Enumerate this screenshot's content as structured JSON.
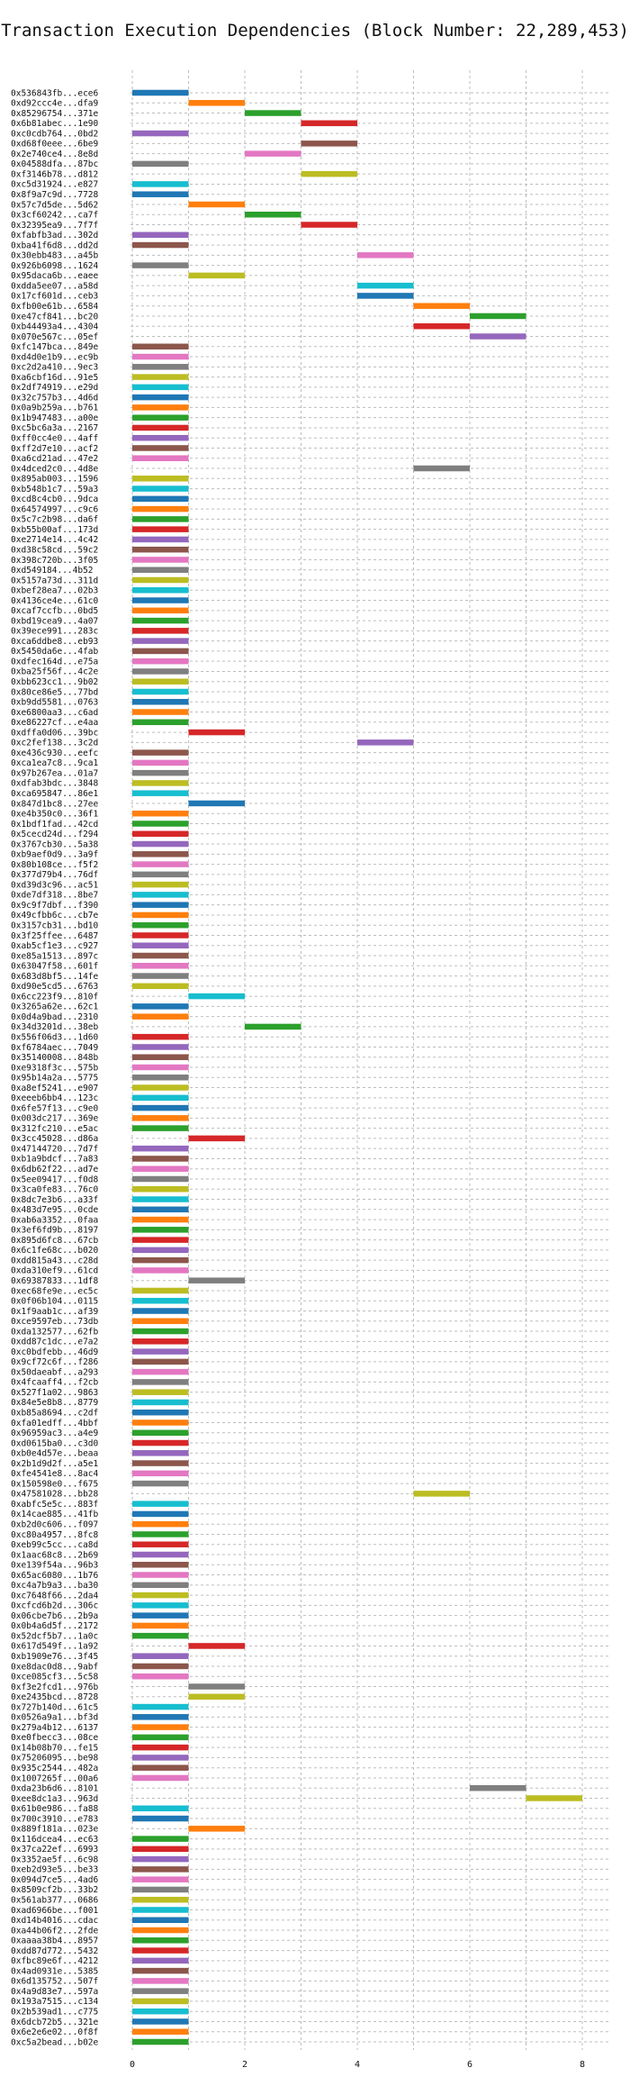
{
  "chart_data": {
    "type": "bar",
    "orientation": "horizontal-gantt",
    "title": "Transaction Execution Dependencies (Block Number: 22,289,453)",
    "xlabel": "",
    "ylabel": "",
    "xlim": [
      0,
      8.5
    ],
    "xticks": [
      0,
      2,
      4,
      6,
      8
    ],
    "grid": true,
    "colors": [
      "#1f77b4",
      "#ff7f0e",
      "#2ca02c",
      "#d62728",
      "#9467bd",
      "#8c564b",
      "#e377c2",
      "#7f7f7f",
      "#bcbd22",
      "#17becf"
    ],
    "transactions": [
      {
        "tx": "0x536843fb...ece6",
        "start": 0
      },
      {
        "tx": "0xd92ccc4e...dfa9",
        "start": 1
      },
      {
        "tx": "0x85296754...371e",
        "start": 2
      },
      {
        "tx": "0x6b81abec...1e90",
        "start": 3
      },
      {
        "tx": "0xc0cdb764...0bd2",
        "start": 0
      },
      {
        "tx": "0xd68f0eee...6be9",
        "start": 3
      },
      {
        "tx": "0x2e740ce4...8e8d",
        "start": 2
      },
      {
        "tx": "0x04588dfa...87bc",
        "start": 0
      },
      {
        "tx": "0xf3146b78...d812",
        "start": 3
      },
      {
        "tx": "0xc5d31924...e827",
        "start": 0
      },
      {
        "tx": "0x8f9a7c9d...7728",
        "start": 0
      },
      {
        "tx": "0x57c7d5de...5d62",
        "start": 1
      },
      {
        "tx": "0x3cf60242...ca7f",
        "start": 2
      },
      {
        "tx": "0x32395ea9...7f7f",
        "start": 3
      },
      {
        "tx": "0xfabfb3ad...302d",
        "start": 0
      },
      {
        "tx": "0xba41f6d8...dd2d",
        "start": 0
      },
      {
        "tx": "0x30ebb483...a45b",
        "start": 4
      },
      {
        "tx": "0x926b6098...1624",
        "start": 0
      },
      {
        "tx": "0x95daca6b...eaee",
        "start": 1
      },
      {
        "tx": "0xdda5ee07...a58d",
        "start": 4
      },
      {
        "tx": "0x17cf601d...ceb3",
        "start": 4
      },
      {
        "tx": "0xfb00e61b...6584",
        "start": 5
      },
      {
        "tx": "0xe47cf841...bc20",
        "start": 6
      },
      {
        "tx": "0xb44493a4...4304",
        "start": 5
      },
      {
        "tx": "0x070e567c...05ef",
        "start": 6
      },
      {
        "tx": "0xfc147bca...849e",
        "start": 0
      },
      {
        "tx": "0xd4d0e1b9...ec9b",
        "start": 0
      },
      {
        "tx": "0xc2d2a410...9ec3",
        "start": 0
      },
      {
        "tx": "0xa6cbf16d...91e5",
        "start": 0
      },
      {
        "tx": "0x2df74919...e29d",
        "start": 0
      },
      {
        "tx": "0x32c757b3...4d6d",
        "start": 0
      },
      {
        "tx": "0x0a9b259a...b761",
        "start": 0
      },
      {
        "tx": "0x1b947483...a00e",
        "start": 0
      },
      {
        "tx": "0xc5bc6a3a...2167",
        "start": 0
      },
      {
        "tx": "0xff0cc4e0...4aff",
        "start": 0
      },
      {
        "tx": "0xff2d7e10...acf2",
        "start": 0
      },
      {
        "tx": "0xa6cd21ad...47e2",
        "start": 0
      },
      {
        "tx": "0x4dced2c0...4d8e",
        "start": 5
      },
      {
        "tx": "0x895ab003...1596",
        "start": 0
      },
      {
        "tx": "0xb548b1c7...59a3",
        "start": 0
      },
      {
        "tx": "0xcd8c4cb0...9dca",
        "start": 0
      },
      {
        "tx": "0x64574997...c9c6",
        "start": 0
      },
      {
        "tx": "0x5c7c2b98...da6f",
        "start": 0
      },
      {
        "tx": "0xb55b00af...173d",
        "start": 0
      },
      {
        "tx": "0xe2714e14...4c42",
        "start": 0
      },
      {
        "tx": "0xd38c58cd...59c2",
        "start": 0
      },
      {
        "tx": "0x398c720b...3f05",
        "start": 0
      },
      {
        "tx": "0xd549184...4b52",
        "start": 0
      },
      {
        "tx": "0x5157a73d...311d",
        "start": 0
      },
      {
        "tx": "0xbef28ea7...02b3",
        "start": 0
      },
      {
        "tx": "0x4136ce4e...61c0",
        "start": 0
      },
      {
        "tx": "0xcaf7ccfb...0bd5",
        "start": 0
      },
      {
        "tx": "0xbd19cea9...4a07",
        "start": 0
      },
      {
        "tx": "0x39ece991...283c",
        "start": 0
      },
      {
        "tx": "0xca6ddbe8...eb93",
        "start": 0
      },
      {
        "tx": "0x5450da6e...4fab",
        "start": 0
      },
      {
        "tx": "0xdfec164d...e75a",
        "start": 0
      },
      {
        "tx": "0xba25f56f...4c2e",
        "start": 0
      },
      {
        "tx": "0xbb623cc1...9b02",
        "start": 0
      },
      {
        "tx": "0x80ce86e5...77bd",
        "start": 0
      },
      {
        "tx": "0xb9dd5581...0763",
        "start": 0
      },
      {
        "tx": "0xe6800aa3...c6ad",
        "start": 0
      },
      {
        "tx": "0xe86227cf...e4aa",
        "start": 0
      },
      {
        "tx": "0xdffa0d06...39bc",
        "start": 1
      },
      {
        "tx": "0xc2fef138...3c2d",
        "start": 4
      },
      {
        "tx": "0xe436c930...eefc",
        "start": 0
      },
      {
        "tx": "0xca1ea7c8...9ca1",
        "start": 0
      },
      {
        "tx": "0x97b267ea...01a7",
        "start": 0
      },
      {
        "tx": "0xdfab3bdc...3848",
        "start": 0
      },
      {
        "tx": "0xca695847...86e1",
        "start": 0
      },
      {
        "tx": "0x847d1bc8...27ee",
        "start": 1
      },
      {
        "tx": "0xe4b350c0...36f1",
        "start": 0
      },
      {
        "tx": "0x1bdf1fad...42cd",
        "start": 0
      },
      {
        "tx": "0x5cecd24d...f294",
        "start": 0
      },
      {
        "tx": "0x3767cb30...5a38",
        "start": 0
      },
      {
        "tx": "0xb9aef0d9...3a9f",
        "start": 0
      },
      {
        "tx": "0x80b108ce...f5f2",
        "start": 0
      },
      {
        "tx": "0x377d79b4...76df",
        "start": 0
      },
      {
        "tx": "0xd39d3c96...ac51",
        "start": 0
      },
      {
        "tx": "0xde7df318...8be7",
        "start": 0
      },
      {
        "tx": "0x9c9f7dbf...f390",
        "start": 0
      },
      {
        "tx": "0x49cfbb6c...cb7e",
        "start": 0
      },
      {
        "tx": "0x3157cb31...bd10",
        "start": 0
      },
      {
        "tx": "0x3f25ffee...6487",
        "start": 0
      },
      {
        "tx": "0xab5cf1e3...c927",
        "start": 0
      },
      {
        "tx": "0xe85a1513...897c",
        "start": 0
      },
      {
        "tx": "0x63047f58...601f",
        "start": 0
      },
      {
        "tx": "0x683d8bf5...14fe",
        "start": 0
      },
      {
        "tx": "0xd90e5cd5...6763",
        "start": 0
      },
      {
        "tx": "0x6cc223f9...810f",
        "start": 1
      },
      {
        "tx": "0x3265a62e...62c1",
        "start": 0
      },
      {
        "tx": "0x0d4a9bad...2310",
        "start": 0
      },
      {
        "tx": "0x34d3201d...38eb",
        "start": 2
      },
      {
        "tx": "0x556f06d3...1d60",
        "start": 0
      },
      {
        "tx": "0xf6784aec...7049",
        "start": 0
      },
      {
        "tx": "0x35140008...848b",
        "start": 0
      },
      {
        "tx": "0xe9318f3c...575b",
        "start": 0
      },
      {
        "tx": "0x95b14a2a...5775",
        "start": 0
      },
      {
        "tx": "0xa8ef5241...e907",
        "start": 0
      },
      {
        "tx": "0xeeeb6bb4...123c",
        "start": 0
      },
      {
        "tx": "0x6fe57f13...c9e0",
        "start": 0
      },
      {
        "tx": "0x003dc217...369e",
        "start": 0
      },
      {
        "tx": "0x312fc210...e5ac",
        "start": 0
      },
      {
        "tx": "0x3cc45028...d86a",
        "start": 1
      },
      {
        "tx": "0x47144720...7d7f",
        "start": 0
      },
      {
        "tx": "0xb1a9bdcf...7a83",
        "start": 0
      },
      {
        "tx": "0x6db62f22...ad7e",
        "start": 0
      },
      {
        "tx": "0x5ee09417...f0d8",
        "start": 0
      },
      {
        "tx": "0x3ca0fe83...76c0",
        "start": 0
      },
      {
        "tx": "0x8dc7e3b6...a33f",
        "start": 0
      },
      {
        "tx": "0x483d7e95...0cde",
        "start": 0
      },
      {
        "tx": "0xab6a3352...0faa",
        "start": 0
      },
      {
        "tx": "0x3ef6fd9b...8197",
        "start": 0
      },
      {
        "tx": "0x895d6fc8...67cb",
        "start": 0
      },
      {
        "tx": "0x6c1fe68c...b020",
        "start": 0
      },
      {
        "tx": "0xdd815a43...c28d",
        "start": 0
      },
      {
        "tx": "0xda310ef9...61cd",
        "start": 0
      },
      {
        "tx": "0x69387833...1df8",
        "start": 1
      },
      {
        "tx": "0xec68fe9e...ec5c",
        "start": 0
      },
      {
        "tx": "0x0f06b104...0115",
        "start": 0
      },
      {
        "tx": "0x1f9aab1c...af39",
        "start": 0
      },
      {
        "tx": "0xce9597eb...73db",
        "start": 0
      },
      {
        "tx": "0xda132577...62fb",
        "start": 0
      },
      {
        "tx": "0xdd87c1dc...e7a2",
        "start": 0
      },
      {
        "tx": "0xc0bdfebb...46d9",
        "start": 0
      },
      {
        "tx": "0x9cf72c6f...f286",
        "start": 0
      },
      {
        "tx": "0x50daeabf...a293",
        "start": 0
      },
      {
        "tx": "0x4fcaaff4...f2cb",
        "start": 0
      },
      {
        "tx": "0x527f1a02...9863",
        "start": 0
      },
      {
        "tx": "0x84e5e8b8...8779",
        "start": 0
      },
      {
        "tx": "0xb85a8694...c2df",
        "start": 0
      },
      {
        "tx": "0xfa01edff...4bbf",
        "start": 0
      },
      {
        "tx": "0x96959ac3...a4e9",
        "start": 0
      },
      {
        "tx": "0xd0615ba0...c3d0",
        "start": 0
      },
      {
        "tx": "0xb0e4d57e...beaa",
        "start": 0
      },
      {
        "tx": "0x2b1d9d2f...a5e1",
        "start": 0
      },
      {
        "tx": "0xfe4541e8...8ac4",
        "start": 0
      },
      {
        "tx": "0x150598e0...f675",
        "start": 0
      },
      {
        "tx": "0x47581028...bb28",
        "start": 5
      },
      {
        "tx": "0xabfc5e5c...883f",
        "start": 0
      },
      {
        "tx": "0x14cae885...41fb",
        "start": 0
      },
      {
        "tx": "0xb2d0c606...f097",
        "start": 0
      },
      {
        "tx": "0xc80a4957...8fc8",
        "start": 0
      },
      {
        "tx": "0xeb99c5cc...ca8d",
        "start": 0
      },
      {
        "tx": "0x1aac68c8...2b69",
        "start": 0
      },
      {
        "tx": "0xe139f54a...96b3",
        "start": 0
      },
      {
        "tx": "0x65ac6080...1b76",
        "start": 0
      },
      {
        "tx": "0xc4a7b9a3...ba30",
        "start": 0
      },
      {
        "tx": "0xc7648f66...2da4",
        "start": 0
      },
      {
        "tx": "0xcfcd6b2d...306c",
        "start": 0
      },
      {
        "tx": "0x06cbe7b6...2b9a",
        "start": 0
      },
      {
        "tx": "0x0b4a6d5f...2172",
        "start": 0
      },
      {
        "tx": "0x52dcf5b7...1a0c",
        "start": 0
      },
      {
        "tx": "0x617d549f...1a92",
        "start": 1
      },
      {
        "tx": "0xb1909e76...3f45",
        "start": 0
      },
      {
        "tx": "0xe8dac0d8...9abf",
        "start": 0
      },
      {
        "tx": "0xce085cf3...5c58",
        "start": 0
      },
      {
        "tx": "0xf3e2fcd1...976b",
        "start": 1
      },
      {
        "tx": "0xe2435bcd...8728",
        "start": 1
      },
      {
        "tx": "0x727b140d...61c5",
        "start": 0
      },
      {
        "tx": "0x0526a9a1...bf3d",
        "start": 0
      },
      {
        "tx": "0x279a4b12...6137",
        "start": 0
      },
      {
        "tx": "0xe0fbecc3...08ce",
        "start": 0
      },
      {
        "tx": "0x14b08b70...fe15",
        "start": 0
      },
      {
        "tx": "0x75206095...be98",
        "start": 0
      },
      {
        "tx": "0x935c2544...482a",
        "start": 0
      },
      {
        "tx": "0x1007265f...00a6",
        "start": 0
      },
      {
        "tx": "0xda23b6d6...8101",
        "start": 6
      },
      {
        "tx": "0xee8dc1a3...963d",
        "start": 7
      },
      {
        "tx": "0x61b0e986...fa88",
        "start": 0
      },
      {
        "tx": "0x700c3910...e783",
        "start": 0
      },
      {
        "tx": "0x889f181a...023e",
        "start": 1
      },
      {
        "tx": "0x116dcea4...ec63",
        "start": 0
      },
      {
        "tx": "0x37ca22ef...6993",
        "start": 0
      },
      {
        "tx": "0x3352ae5f...6c98",
        "start": 0
      },
      {
        "tx": "0xeb2d93e5...be33",
        "start": 0
      },
      {
        "tx": "0x094d7ce5...4ad6",
        "start": 0
      },
      {
        "tx": "0x8509cf2b...33b2",
        "start": 0
      },
      {
        "tx": "0x561ab377...0686",
        "start": 0
      },
      {
        "tx": "0xad6966be...f001",
        "start": 0
      },
      {
        "tx": "0xd14b4016...cdac",
        "start": 0
      },
      {
        "tx": "0xa44b06f2...2fde",
        "start": 0
      },
      {
        "tx": "0xaaaa38b4...8957",
        "start": 0
      },
      {
        "tx": "0xdd87d772...5432",
        "start": 0
      },
      {
        "tx": "0xfbc89e6f...4212",
        "start": 0
      },
      {
        "tx": "0x4ad0931e...5385",
        "start": 0
      },
      {
        "tx": "0x6d135752...507f",
        "start": 0
      },
      {
        "tx": "0x4a9d83e7...597a",
        "start": 0
      },
      {
        "tx": "0x193a7515...c134",
        "start": 0
      },
      {
        "tx": "0x2b539ad1...c775",
        "start": 0
      },
      {
        "tx": "0x6dcb72b5...321e",
        "start": 0
      },
      {
        "tx": "0x6e2e6e02...0f8f",
        "start": 0
      },
      {
        "tx": "0xc5a2bead...b02e",
        "start": 0
      }
    ]
  }
}
